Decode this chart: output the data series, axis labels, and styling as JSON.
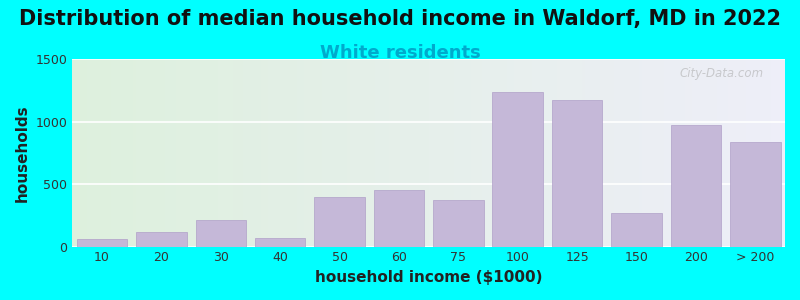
{
  "title": "Distribution of median household income in Waldorf, MD in 2022",
  "subtitle": "White residents",
  "xlabel": "household income ($1000)",
  "ylabel": "households",
  "background_color": "#00FFFF",
  "bar_color": "#c5b8d8",
  "bar_edge_color": "#b0a0c8",
  "categories": [
    "10",
    "20",
    "30",
    "40",
    "50",
    "60",
    "75",
    "100",
    "125",
    "150",
    "200",
    "> 200"
  ],
  "values": [
    60,
    115,
    210,
    70,
    400,
    455,
    370,
    1240,
    1175,
    265,
    975,
    840
  ],
  "ylim": [
    0,
    1500
  ],
  "yticks": [
    0,
    500,
    1000,
    1500
  ],
  "title_fontsize": 15,
  "subtitle_fontsize": 13,
  "subtitle_color": "#00AACC",
  "axis_label_fontsize": 11,
  "tick_fontsize": 9,
  "watermark": "City-Data.com"
}
